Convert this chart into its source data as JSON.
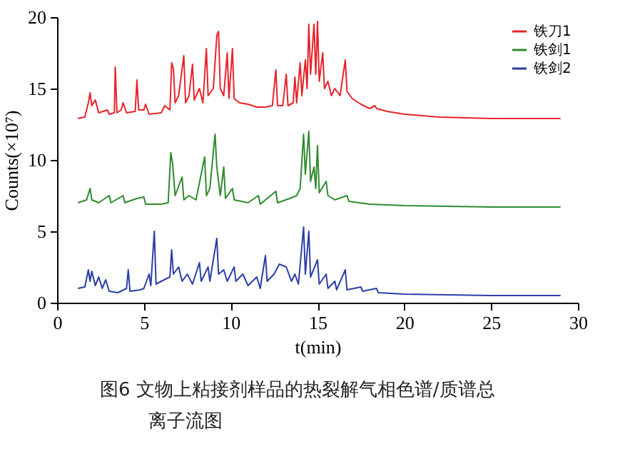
{
  "chart_data": {
    "type": "line",
    "xlabel": "t(min)",
    "ylabel": "Counts(×10⁷)",
    "xlim": [
      0,
      30
    ],
    "xticks": [
      0,
      5,
      10,
      15,
      20,
      25,
      30
    ],
    "ylim": [
      0,
      20
    ],
    "yticks": [
      0,
      5,
      10,
      15,
      20
    ],
    "grid": false,
    "legend": "top right",
    "marker": "none",
    "line_style": "solid",
    "annotations": [
      "图6 文物上粘接剂样品的热裂解气相色谱/质谱总离子流图"
    ],
    "series": [
      {
        "name": "铁刀1",
        "color": "#e8232a",
        "x": [
          1.2,
          1.6,
          1.8,
          1.9,
          2.0,
          2.2,
          2.4,
          2.9,
          3.0,
          3.3,
          3.35,
          3.45,
          3.7,
          3.8,
          4.0,
          4.5,
          4.6,
          4.7,
          5.0,
          5.1,
          5.3,
          6.0,
          6.2,
          6.5,
          6.6,
          6.7,
          6.8,
          7.0,
          7.3,
          7.4,
          7.6,
          7.8,
          7.9,
          8.2,
          8.4,
          8.6,
          8.7,
          9.0,
          9.2,
          9.3,
          9.4,
          9.6,
          9.8,
          9.9,
          10.1,
          10.2,
          10.5,
          11.0,
          11.5,
          12.0,
          12.4,
          12.6,
          12.7,
          13.0,
          13.2,
          13.3,
          13.6,
          13.7,
          13.8,
          14.0,
          14.1,
          14.3,
          14.4,
          14.5,
          14.6,
          14.8,
          14.9,
          15.0,
          15.1,
          15.3,
          15.4,
          15.6,
          15.8,
          16.0,
          16.3,
          16.6,
          16.7,
          17.0,
          17.5,
          18.0,
          18.3,
          18.4,
          19.0,
          20,
          22,
          25,
          29
        ],
        "values": [
          12.9,
          13.0,
          14.0,
          14.7,
          13.8,
          14.2,
          13.3,
          13.5,
          13.2,
          13.3,
          16.5,
          13.3,
          13.5,
          14.0,
          13.3,
          13.4,
          15.6,
          13.5,
          13.5,
          13.9,
          13.2,
          13.3,
          13.8,
          13.5,
          16.8,
          16.4,
          14.0,
          14.5,
          17.3,
          14.0,
          14.5,
          16.7,
          14.2,
          15.0,
          14.0,
          17.8,
          14.5,
          15.0,
          18.7,
          19.0,
          15.0,
          14.5,
          17.5,
          14.3,
          17.8,
          14.3,
          14.0,
          13.9,
          13.7,
          13.7,
          13.8,
          16.3,
          13.8,
          13.8,
          16.0,
          13.8,
          14.0,
          15.8,
          14.0,
          16.8,
          14.5,
          17.0,
          15.0,
          19.5,
          16.0,
          19.5,
          16.0,
          19.7,
          15.5,
          17.5,
          15.0,
          15.5,
          14.5,
          15.0,
          14.5,
          17.0,
          14.8,
          14.3,
          13.9,
          13.6,
          13.8,
          13.6,
          13.4,
          13.2,
          13.0,
          12.9,
          12.9
        ]
      },
      {
        "name": "铁剑1",
        "color": "#2e8b2e",
        "x": [
          1.2,
          1.7,
          1.9,
          2.0,
          2.4,
          3.0,
          3.1,
          3.8,
          3.9,
          4.6,
          5.0,
          5.1,
          6.0,
          6.4,
          6.55,
          6.65,
          6.8,
          7.2,
          7.3,
          7.6,
          8.0,
          8.5,
          8.6,
          8.8,
          9.1,
          9.2,
          9.4,
          9.6,
          9.7,
          10.1,
          10.2,
          11,
          11.6,
          11.7,
          12.6,
          12.7,
          13.4,
          13.8,
          14.0,
          14.2,
          14.3,
          14.5,
          14.6,
          14.8,
          14.9,
          15.0,
          15.1,
          15.5,
          15.6,
          16.0,
          16.7,
          16.8,
          18,
          20,
          25,
          29
        ],
        "values": [
          7.0,
          7.2,
          8.0,
          7.2,
          7.0,
          7.5,
          7.0,
          7.5,
          7.0,
          7.3,
          7.4,
          6.9,
          6.9,
          7.0,
          10.5,
          9.8,
          7.5,
          8.8,
          7.2,
          7.5,
          7.2,
          10.2,
          7.5,
          8.0,
          11.8,
          9.5,
          7.5,
          9.5,
          7.3,
          8.0,
          7.2,
          7.0,
          7.5,
          6.9,
          7.8,
          7.0,
          7.3,
          7.5,
          8.0,
          11.8,
          9.0,
          12.0,
          8.5,
          9.5,
          8.0,
          11.0,
          7.7,
          8.5,
          7.5,
          7.2,
          7.5,
          7.1,
          6.9,
          6.8,
          6.7,
          6.7
        ]
      },
      {
        "name": "铁剑2",
        "color": "#2b3fa6",
        "x": [
          1.2,
          1.6,
          1.8,
          1.9,
          2.0,
          2.2,
          2.4,
          2.6,
          2.8,
          3.0,
          3.5,
          4.0,
          4.1,
          4.2,
          4.8,
          5.0,
          5.3,
          5.4,
          5.6,
          5.7,
          6.0,
          6.5,
          6.6,
          6.7,
          7.0,
          7.2,
          7.5,
          7.8,
          8.2,
          8.3,
          8.7,
          8.8,
          9.2,
          9.3,
          9.6,
          9.8,
          10.2,
          10.3,
          10.7,
          11.0,
          11.5,
          11.7,
          12.0,
          12.1,
          12.5,
          12.8,
          13.2,
          13.5,
          13.7,
          13.9,
          14.2,
          14.3,
          14.5,
          14.6,
          15.0,
          15.1,
          15.5,
          15.6,
          16.0,
          16.1,
          16.6,
          16.7,
          17.5,
          17.6,
          18.4,
          18.5,
          20,
          25,
          29
        ],
        "values": [
          1.0,
          1.1,
          2.3,
          1.5,
          2.2,
          1.2,
          1.8,
          1.0,
          1.6,
          0.8,
          0.7,
          1.0,
          2.3,
          0.8,
          0.9,
          1.0,
          2.0,
          1.2,
          5.0,
          1.3,
          1.5,
          1.8,
          3.7,
          2.0,
          2.5,
          1.5,
          2.0,
          1.3,
          2.8,
          1.5,
          2.5,
          1.5,
          4.5,
          2.0,
          2.3,
          1.5,
          2.5,
          1.5,
          2.0,
          1.2,
          1.8,
          1.0,
          3.3,
          1.5,
          2.0,
          2.7,
          2.5,
          1.5,
          2.0,
          1.3,
          5.3,
          2.0,
          5.0,
          1.8,
          3.0,
          1.3,
          2.0,
          1.0,
          1.5,
          0.9,
          2.3,
          0.9,
          1.1,
          0.8,
          1.0,
          0.7,
          0.6,
          0.5,
          0.5
        ]
      }
    ]
  }
}
